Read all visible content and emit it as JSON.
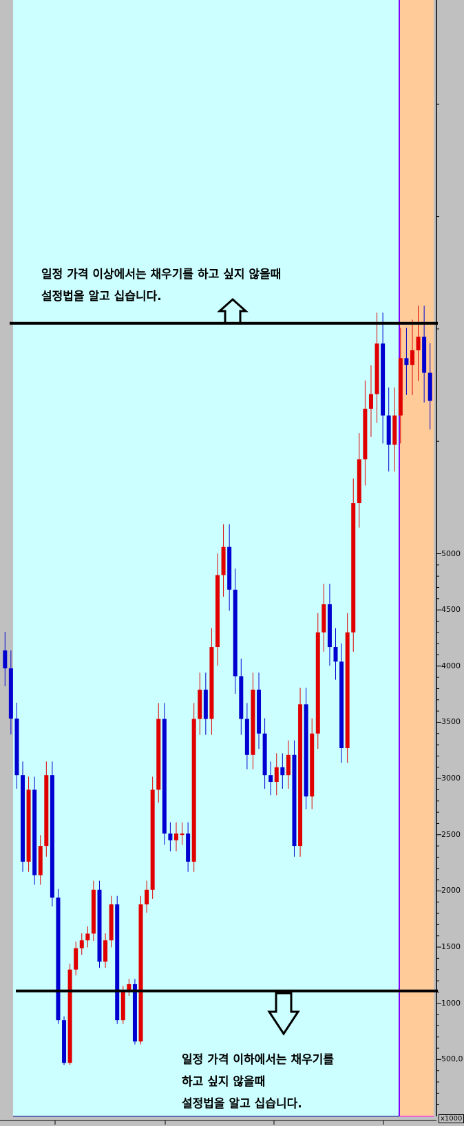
{
  "chart_data": {
    "type": "candlestick",
    "title": "",
    "xlabel": "",
    "ylabel": "",
    "y_axis_unit": "x1000",
    "y_tick_labels": [
      "5000",
      "4500",
      "4000",
      "3500",
      "3000",
      "2500",
      "2000",
      "1500",
      "1000",
      "500,0"
    ],
    "y_tick_values": [
      5000,
      4500,
      4000,
      3500,
      3000,
      2500,
      2000,
      1500,
      1000,
      500
    ],
    "ylim": [
      0,
      9950
    ],
    "grid": false,
    "up_color": "#e00000",
    "down_color": "#0000d0",
    "closes": [
      3980,
      3533,
      3030,
      2260,
      2900,
      2140,
      2400,
      3030,
      1940,
      850,
      470,
      1300,
      1490,
      1560,
      1620,
      2010,
      1370,
      1560,
      1880,
      850,
      1110,
      1170,
      660,
      1880,
      2010,
      2900,
      3530,
      2510,
      2450,
      2510,
      2510,
      2260,
      3530,
      3790,
      3530,
      4170,
      4810,
      5060,
      4680,
      3910,
      3530,
      3210,
      3790,
      3400,
      3030,
      2970,
      3100,
      3030,
      3210,
      2400,
      3660,
      2840,
      3400,
      4300,
      4550,
      4170,
      4040,
      3270,
      4300,
      5450,
      5840,
      6290,
      6420,
      6870,
      6230,
      5970,
      6230,
      6740,
      6680,
      6810,
      6930,
      6610,
      6360
    ],
    "horizontal_levels": [
      7050,
      1110
    ]
  },
  "annotations": {
    "upper_note": [
      "일정 가격 이상에서는 채우기를 하고 싶지 않을때",
      "설정법을 알고 십습니다."
    ],
    "lower_note": [
      "일정 가격 이하에서는 채우기를",
      "하고 싶지 않을때",
      "설정법을 알고 십습니다."
    ]
  },
  "colors": {
    "plot_background": "#ccffff",
    "shaded_region": "#ffcc99",
    "divider_line": "#8000ff"
  }
}
